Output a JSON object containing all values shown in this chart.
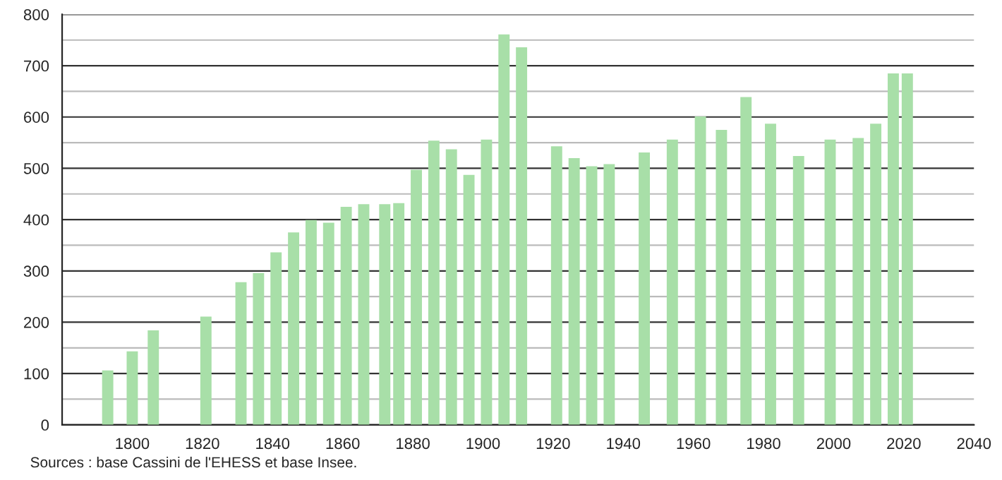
{
  "chart_data": {
    "type": "bar",
    "x": [
      1793,
      1800,
      1806,
      1821,
      1831,
      1836,
      1841,
      1846,
      1851,
      1856,
      1861,
      1866,
      1872,
      1876,
      1881,
      1886,
      1891,
      1896,
      1901,
      1906,
      1911,
      1921,
      1926,
      1931,
      1936,
      1946,
      1954,
      1962,
      1968,
      1975,
      1982,
      1990,
      1999,
      2007,
      2012,
      2017,
      2021
    ],
    "values": [
      106,
      143,
      184,
      211,
      278,
      296,
      336,
      375,
      399,
      394,
      425,
      430,
      430,
      432,
      497,
      554,
      537,
      487,
      556,
      761,
      736,
      543,
      520,
      504,
      508,
      531,
      556,
      601,
      575,
      639,
      587,
      524,
      556,
      559,
      587,
      685,
      685
    ],
    "color": "#a8dfa8",
    "xlim": [
      1780,
      2040
    ],
    "xticks": [
      1800,
      1820,
      1840,
      1860,
      1880,
      1900,
      1920,
      1940,
      1960,
      1980,
      2000,
      2020,
      2040
    ],
    "ylim": [
      0,
      800
    ],
    "yticks": [
      0,
      {
        "value": 50,
        "label": null
      },
      100,
      {
        "value": 150,
        "label": null
      },
      200,
      {
        "value": 250,
        "label": null
      },
      300,
      {
        "value": 350,
        "label": null
      },
      400,
      {
        "value": 450,
        "label": null
      },
      500,
      {
        "value": 550,
        "label": null
      },
      600,
      {
        "value": 650,
        "label": null
      },
      700,
      {
        "value": 750,
        "label": null
      },
      800
    ],
    "grid": "y",
    "annotations": [
      "Sources : base Cassini de l'EHESS et base Insee."
    ]
  }
}
